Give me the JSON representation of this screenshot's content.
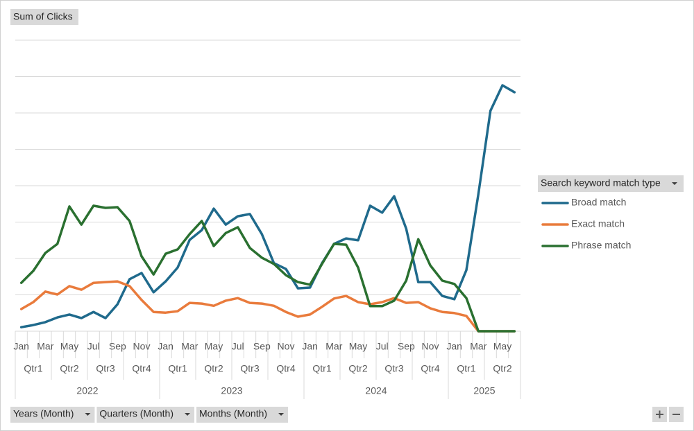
{
  "chart_data": {
    "type": "line",
    "field_button": "Sum of Clicks",
    "legend_title": "Search keyword match type",
    "legend": "right",
    "grid": true,
    "tick_labels": false,
    "ylim": [
      0,
      8
    ],
    "yticks": [
      0,
      1,
      2,
      3,
      4,
      5,
      6,
      7,
      8
    ],
    "categories": [
      "Jan",
      null,
      "Mar",
      null,
      "May",
      null,
      "Jul",
      null,
      "Sep",
      null,
      "Nov",
      null,
      "Jan",
      null,
      "Mar",
      null,
      "May",
      null,
      "Jul",
      null,
      "Sep",
      null,
      "Nov",
      null,
      "Jan",
      null,
      "Mar",
      null,
      "May",
      null,
      "Jul",
      null,
      "Sep",
      null,
      "Nov",
      null,
      "Jan",
      null,
      "Mar",
      null,
      "May",
      null
    ],
    "quarters": [
      "Qtr1",
      "Qtr2",
      "Qtr3",
      "Qtr4",
      "Qtr1",
      "Qtr2",
      "Qtr3",
      "Qtr4",
      "Qtr1",
      "Qtr2",
      "Qtr3",
      "Qtr4",
      "Qtr1",
      "Qtr2"
    ],
    "years": [
      "2022",
      "2023",
      "2024",
      "2025"
    ],
    "series": [
      {
        "name": "Broad match",
        "color": "#1f6a8c",
        "values": [
          0.11,
          0.17,
          0.25,
          0.38,
          0.46,
          0.36,
          0.53,
          0.36,
          0.74,
          1.43,
          1.6,
          1.07,
          1.37,
          1.75,
          2.51,
          2.78,
          3.37,
          2.93,
          3.16,
          3.22,
          2.67,
          1.87,
          1.71,
          1.18,
          1.2,
          1.87,
          2.4,
          2.55,
          2.5,
          3.45,
          3.26,
          3.71,
          2.82,
          1.35,
          1.35,
          0.97,
          0.88,
          1.68,
          3.77,
          6.06,
          6.76,
          6.57
        ]
      },
      {
        "name": "Exact match",
        "color": "#e97b3c",
        "values": [
          0.61,
          0.8,
          1.09,
          1.01,
          1.24,
          1.14,
          1.33,
          1.35,
          1.37,
          1.24,
          0.86,
          0.53,
          0.51,
          0.55,
          0.78,
          0.76,
          0.7,
          0.84,
          0.91,
          0.78,
          0.76,
          0.7,
          0.53,
          0.4,
          0.46,
          0.67,
          0.9,
          0.97,
          0.8,
          0.74,
          0.8,
          0.91,
          0.78,
          0.8,
          0.63,
          0.53,
          0.5,
          0.42,
          0,
          0,
          0,
          0
        ]
      },
      {
        "name": "Phrase match",
        "color": "#2a7030",
        "values": [
          1.33,
          1.66,
          2.15,
          2.4,
          3.43,
          2.93,
          3.45,
          3.39,
          3.41,
          3.03,
          2.06,
          1.56,
          2.13,
          2.25,
          2.67,
          3.03,
          2.34,
          2.7,
          2.86,
          2.29,
          2.02,
          1.85,
          1.54,
          1.35,
          1.28,
          1.85,
          2.4,
          2.38,
          1.75,
          0.69,
          0.69,
          0.84,
          1.39,
          2.53,
          1.81,
          1.39,
          1.3,
          0.91,
          0,
          0,
          0,
          0
        ]
      }
    ],
    "axis_buttons": [
      "Years (Month)",
      "Quarters (Month)",
      "Months (Month)"
    ]
  }
}
